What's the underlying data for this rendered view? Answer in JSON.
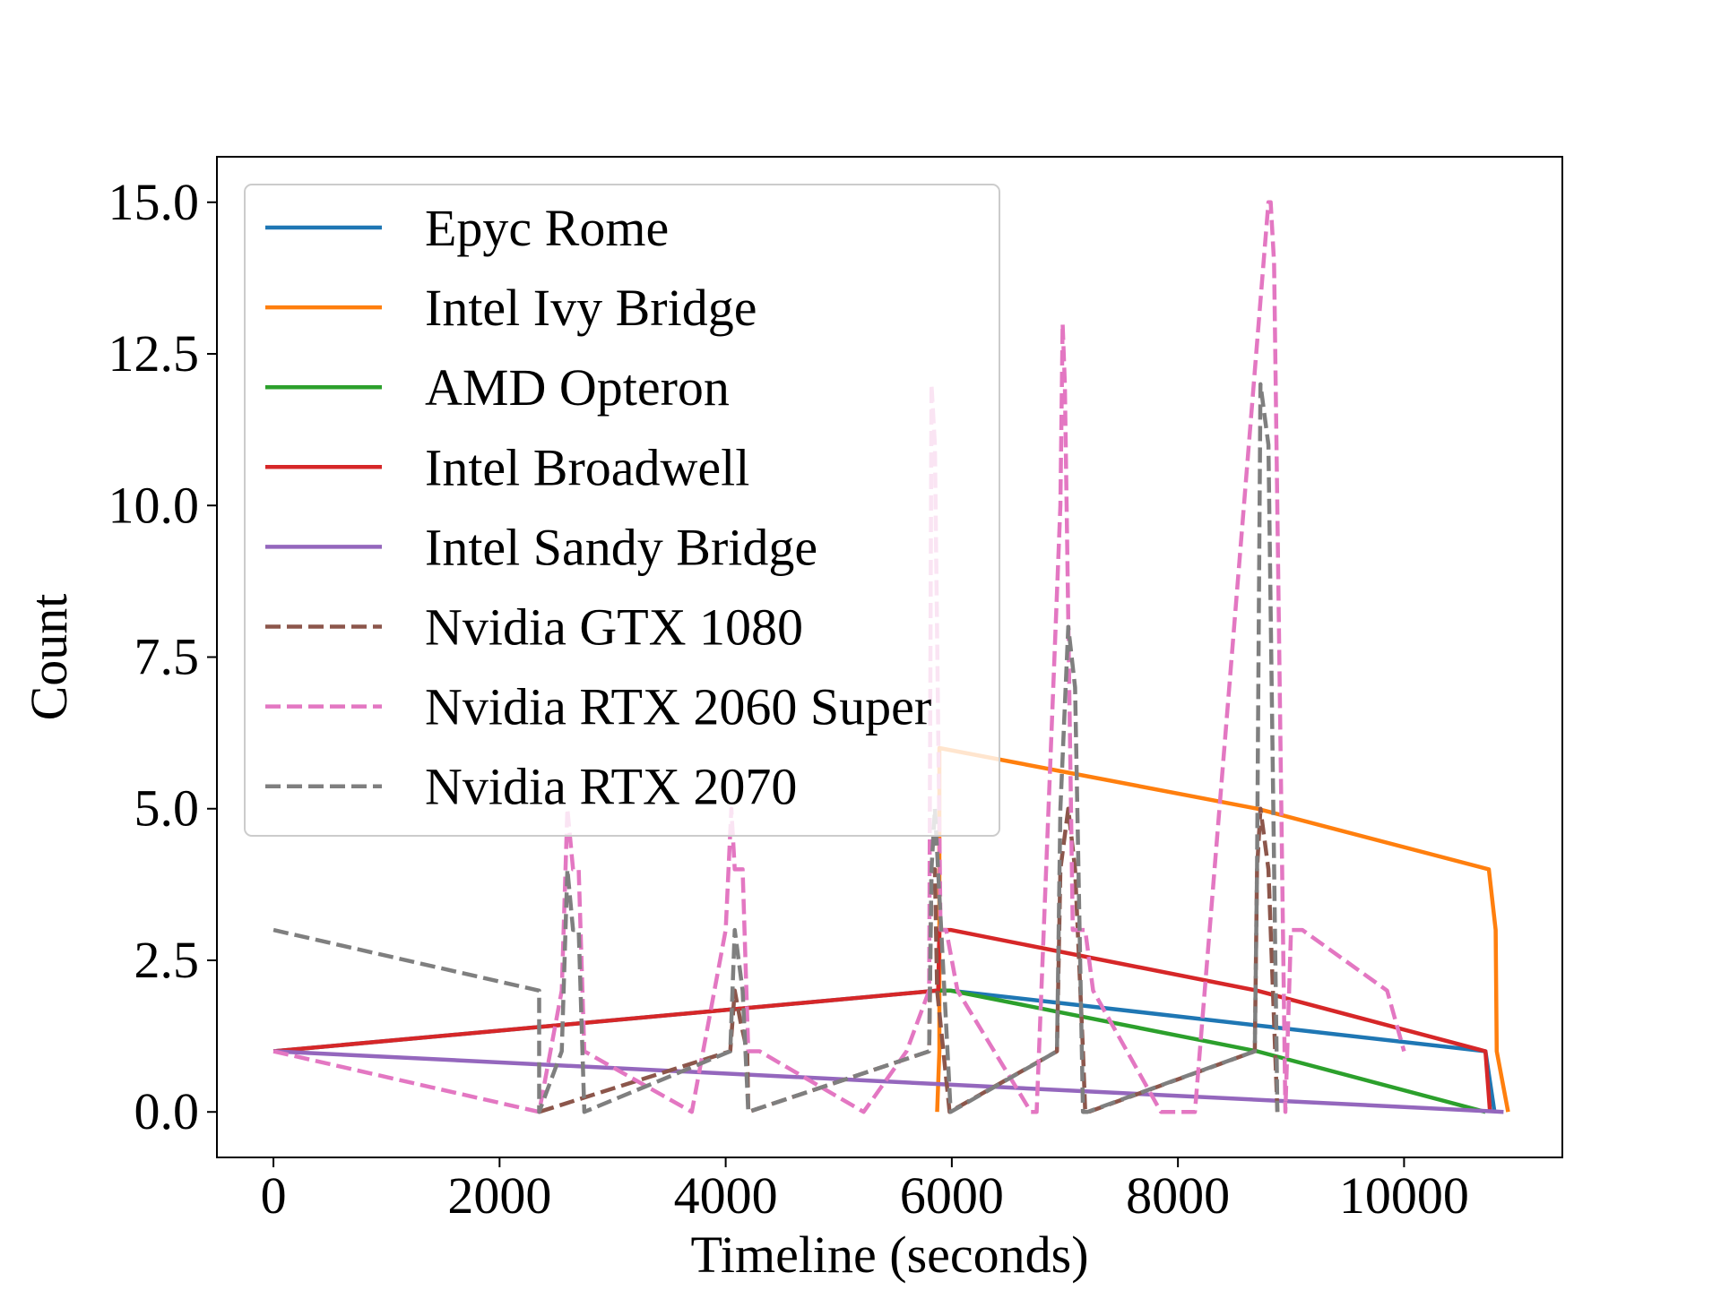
{
  "chart_data": {
    "type": "line",
    "title": "",
    "xlabel": "Timeline (seconds)",
    "ylabel": "Count",
    "xlim": [
      -500,
      11400
    ],
    "ylim": [
      -0.75,
      15.75
    ],
    "xticks": [
      0,
      2000,
      4000,
      6000,
      8000,
      10000
    ],
    "xtick_labels": [
      "0",
      "2000",
      "4000",
      "6000",
      "8000",
      "10000"
    ],
    "yticks": [
      0,
      2.5,
      5,
      7.5,
      10,
      12.5,
      15
    ],
    "ytick_labels": [
      "0.0",
      "2.5",
      "5.0",
      "7.5",
      "10.0",
      "12.5",
      "15.0"
    ],
    "grid": false,
    "legend_position": "upper-left",
    "series": [
      {
        "name": "Epyc Rome",
        "color": "#1f77b4",
        "dash": "solid",
        "x": [
          0,
          5870,
          5870,
          5990,
          10720,
          10800
        ],
        "y": [
          1,
          2,
          2,
          2,
          1,
          0
        ]
      },
      {
        "name": "Intel Ivy Bridge",
        "color": "#ff7f0e",
        "dash": "solid",
        "x": [
          5870,
          5890,
          5890,
          8700,
          10750,
          10810,
          10820,
          10920
        ],
        "y": [
          0,
          1,
          6,
          5,
          4,
          3,
          1,
          0
        ]
      },
      {
        "name": "AMD Opteron",
        "color": "#2ca02c",
        "dash": "solid",
        "x": [
          5890,
          5990,
          8700,
          10720
        ],
        "y": [
          2,
          2,
          1,
          0
        ]
      },
      {
        "name": "Intel Broadwell",
        "color": "#d62728",
        "dash": "solid",
        "x": [
          0,
          5870,
          5880,
          5890,
          5990,
          8700,
          10720,
          10760
        ],
        "y": [
          1,
          2,
          2,
          3,
          3,
          2,
          1,
          0
        ]
      },
      {
        "name": "Intel Sandy Bridge",
        "color": "#9467bd",
        "dash": "solid",
        "x": [
          0,
          10880
        ],
        "y": [
          1,
          0
        ]
      },
      {
        "name": "Nvidia GTX 1080",
        "color": "#8c564b",
        "dash": "dashed",
        "x": [
          2350,
          4040,
          4080,
          4130,
          4190,
          4200,
          5800,
          5820,
          5850,
          5870,
          5980,
          6930,
          6960,
          7030,
          7090,
          7160,
          7180,
          7210,
          8680,
          8700,
          8730,
          8800,
          8880
        ],
        "y": [
          0,
          1,
          2,
          1.5,
          1,
          0,
          1,
          4,
          4,
          2,
          0,
          1,
          4,
          5,
          4,
          1,
          0,
          0,
          1,
          4,
          5,
          4,
          0
        ]
      },
      {
        "name": "Nvidia RTX 2060 Super",
        "color": "#e377c2",
        "dash": "dashed",
        "x": [
          0,
          2350,
          2550,
          2600,
          2650,
          2700,
          2750,
          3700,
          4000,
          4050,
          4080,
          4150,
          4200,
          4300,
          5220,
          5600,
          5800,
          5820,
          5850,
          5900,
          5950,
          6050,
          6700,
          6750,
          6960,
          6980,
          7000,
          7070,
          7100,
          7180,
          7250,
          7850,
          8150,
          8800,
          8820,
          8850,
          8950,
          9000,
          9100,
          9850,
          10000
        ],
        "y": [
          1,
          0,
          2,
          5,
          4,
          4,
          1,
          0,
          3,
          5,
          4,
          4,
          1,
          1,
          0,
          1,
          2,
          12,
          11,
          3,
          3,
          2,
          0,
          0,
          10,
          13,
          12,
          3,
          3,
          3,
          2,
          0,
          0,
          15,
          15,
          14,
          0,
          3,
          3,
          2,
          1
        ]
      },
      {
        "name": "Nvidia RTX 2070",
        "color": "#7f7f7f",
        "dash": "dashed",
        "x": [
          0,
          2350,
          2350,
          2550,
          2600,
          2650,
          2700,
          2750,
          4040,
          4080,
          4150,
          4200,
          5800,
          5820,
          5850,
          5990,
          6930,
          6960,
          7030,
          7090,
          7160,
          7200,
          8680,
          8700,
          8730,
          8800,
          8880
        ],
        "y": [
          3,
          2,
          0,
          1,
          4,
          3,
          3,
          0,
          1,
          3,
          2,
          0,
          1,
          4,
          5,
          0,
          1,
          5,
          8,
          7,
          0,
          0,
          1,
          4,
          12,
          11,
          0
        ]
      }
    ]
  }
}
